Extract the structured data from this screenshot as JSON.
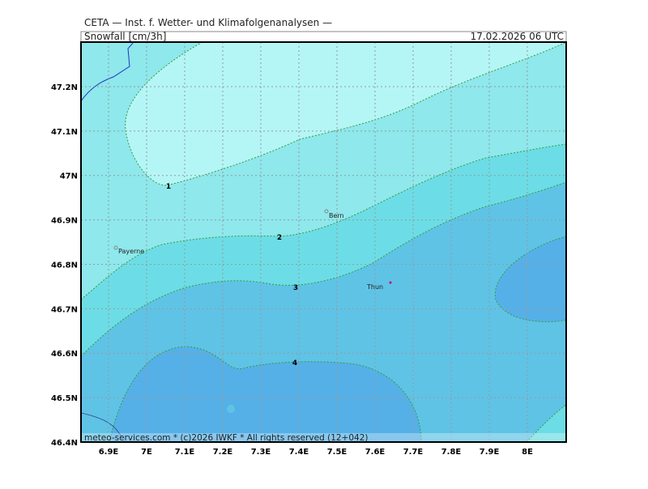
{
  "header": {
    "source": "CETA — Inst. f. Wetter- und Klimafolgenanalysen —",
    "parameter": "Snowfall [cm/3h]",
    "valid_time": "17.02.2026 06 UTC"
  },
  "map": {
    "xlim": [
      6.8277,
      8.1021
    ],
    "ylim": [
      46.4,
      47.3002
    ],
    "xticks": [
      {
        "value": 6.9,
        "label": "6.9E"
      },
      {
        "value": 7.0,
        "label": "7E"
      },
      {
        "value": 7.1,
        "label": "7.1E"
      },
      {
        "value": 7.2,
        "label": "7.2E"
      },
      {
        "value": 7.3,
        "label": "7.3E"
      },
      {
        "value": 7.4,
        "label": "7.4E"
      },
      {
        "value": 7.5,
        "label": "7.5E"
      },
      {
        "value": 7.6,
        "label": "7.6E"
      },
      {
        "value": 7.7,
        "label": "7.7E"
      },
      {
        "value": 7.8,
        "label": "7.8E"
      },
      {
        "value": 7.9,
        "label": "7.9E"
      },
      {
        "value": 8.0,
        "label": "8E"
      }
    ],
    "yticks": [
      {
        "value": 46.4,
        "label": "46.4N"
      },
      {
        "value": 46.5,
        "label": "46.5N"
      },
      {
        "value": 46.6,
        "label": "46.6N"
      },
      {
        "value": 46.7,
        "label": "46.7N"
      },
      {
        "value": 46.8,
        "label": "46.8N"
      },
      {
        "value": 46.9,
        "label": "46.9N"
      },
      {
        "value": 47.0,
        "label": "47N"
      },
      {
        "value": 47.1,
        "label": "47.1N"
      },
      {
        "value": 47.2,
        "label": "47.2N"
      }
    ],
    "contour_levels": [
      1,
      2,
      3,
      4
    ],
    "cities": [
      "Bern",
      "Payerne",
      "Thun"
    ]
  },
  "footer": "meteo-services.com * (c)2026 IWKF * All rights reserved (12+042)"
}
